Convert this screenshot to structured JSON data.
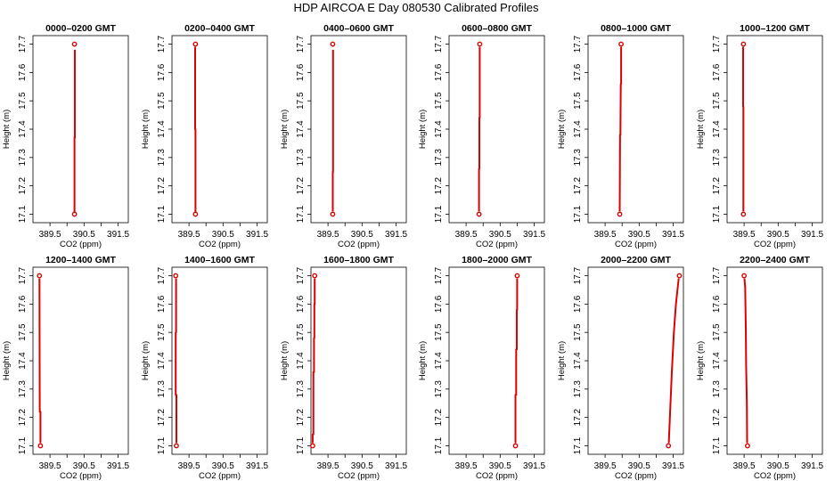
{
  "figure": {
    "title": "HDP  AIRCOA E  Day 080530  Calibrated Profiles",
    "series_color": "#dd0000"
  },
  "chart_data": [
    {
      "type": "line",
      "title": "0000–0200 GMT",
      "xlabel": "CO2 (ppm)",
      "ylabel": "Height (m)",
      "xlim": [
        389.0,
        391.8
      ],
      "ylim": [
        17.07,
        17.73
      ],
      "xticks": [
        "389.5",
        "390.5",
        "391.5"
      ],
      "yticks": [
        "17.1",
        "17.2",
        "17.3",
        "17.4",
        "17.5",
        "17.6",
        "17.7"
      ],
      "points": [
        {
          "x": 390.22,
          "y": 17.1
        },
        {
          "x": 390.22,
          "y": 17.7
        }
      ],
      "profile": [
        [
          390.22,
          17.1
        ],
        [
          390.22,
          17.37
        ],
        [
          390.23,
          17.37
        ],
        [
          390.23,
          17.68
        ]
      ]
    },
    {
      "type": "line",
      "title": "0200–0400 GMT",
      "xlabel": "CO2 (ppm)",
      "ylabel": "Height (m)",
      "xlim": [
        389.0,
        391.8
      ],
      "ylim": [
        17.07,
        17.73
      ],
      "xticks": [
        "389.5",
        "390.5",
        "391.5"
      ],
      "yticks": [
        "17.1",
        "17.2",
        "17.3",
        "17.4",
        "17.5",
        "17.6",
        "17.7"
      ],
      "points": [
        {
          "x": 389.69,
          "y": 17.1
        },
        {
          "x": 389.69,
          "y": 17.7
        }
      ],
      "profile": [
        [
          389.69,
          17.1
        ],
        [
          389.69,
          17.4
        ],
        [
          389.68,
          17.4
        ],
        [
          389.68,
          17.69
        ]
      ]
    },
    {
      "type": "line",
      "title": "0400–0600 GMT",
      "xlabel": "CO2 (ppm)",
      "ylabel": "Height (m)",
      "xlim": [
        389.0,
        391.8
      ],
      "ylim": [
        17.07,
        17.73
      ],
      "xticks": [
        "389.5",
        "390.5",
        "391.5"
      ],
      "yticks": [
        "17.1",
        "17.2",
        "17.3",
        "17.4",
        "17.5",
        "17.6",
        "17.7"
      ],
      "points": [
        {
          "x": 389.64,
          "y": 17.1
        },
        {
          "x": 389.64,
          "y": 17.7
        }
      ],
      "profile": [
        [
          389.64,
          17.11
        ],
        [
          389.64,
          17.25
        ],
        [
          389.65,
          17.25
        ],
        [
          389.65,
          17.68
        ]
      ]
    },
    {
      "type": "line",
      "title": "0600–0800 GMT",
      "xlabel": "CO2 (ppm)",
      "ylabel": "Height (m)",
      "xlim": [
        389.0,
        391.8
      ],
      "ylim": [
        17.07,
        17.73
      ],
      "xticks": [
        "389.5",
        "390.5",
        "391.5"
      ],
      "yticks": [
        "17.1",
        "17.2",
        "17.3",
        "17.4",
        "17.5",
        "17.6",
        "17.7"
      ],
      "points": [
        {
          "x": 389.88,
          "y": 17.1
        },
        {
          "x": 389.9,
          "y": 17.7
        }
      ],
      "profile": [
        [
          389.88,
          17.11
        ],
        [
          389.88,
          17.26
        ],
        [
          389.89,
          17.26
        ],
        [
          389.89,
          17.44
        ],
        [
          389.9,
          17.44
        ],
        [
          389.9,
          17.69
        ]
      ]
    },
    {
      "type": "line",
      "title": "0800–1000 GMT",
      "xlabel": "CO2 (ppm)",
      "ylabel": "Height (m)",
      "xlim": [
        389.0,
        391.8
      ],
      "ylim": [
        17.07,
        17.73
      ],
      "xticks": [
        "389.5",
        "390.5",
        "391.5"
      ],
      "yticks": [
        "17.1",
        "17.2",
        "17.3",
        "17.4",
        "17.5",
        "17.6",
        "17.7"
      ],
      "points": [
        {
          "x": 389.93,
          "y": 17.1
        },
        {
          "x": 389.97,
          "y": 17.7
        }
      ],
      "profile": [
        [
          389.93,
          17.11
        ],
        [
          389.94,
          17.38
        ],
        [
          389.95,
          17.38
        ],
        [
          389.96,
          17.56
        ],
        [
          389.97,
          17.56
        ],
        [
          389.97,
          17.69
        ]
      ]
    },
    {
      "type": "line",
      "title": "1000–1200 GMT",
      "xlabel": "CO2 (ppm)",
      "ylabel": "Height (m)",
      "xlim": [
        389.0,
        391.8
      ],
      "ylim": [
        17.07,
        17.73
      ],
      "xticks": [
        "389.5",
        "390.5",
        "391.5"
      ],
      "yticks": [
        "17.1",
        "17.2",
        "17.3",
        "17.4",
        "17.5",
        "17.6",
        "17.7"
      ],
      "points": [
        {
          "x": 389.48,
          "y": 17.1
        },
        {
          "x": 389.48,
          "y": 17.7
        }
      ],
      "profile": [
        [
          389.48,
          17.11
        ],
        [
          389.48,
          17.48
        ],
        [
          389.47,
          17.48
        ],
        [
          389.47,
          17.69
        ]
      ]
    },
    {
      "type": "line",
      "title": "1200–1400 GMT",
      "xlabel": "CO2 (ppm)",
      "ylabel": "Height (m)",
      "xlim": [
        389.0,
        391.8
      ],
      "ylim": [
        17.07,
        17.73
      ],
      "xticks": [
        "389.5",
        "390.5",
        "391.5"
      ],
      "yticks": [
        "17.1",
        "17.2",
        "17.3",
        "17.4",
        "17.5",
        "17.6",
        "17.7"
      ],
      "points": [
        {
          "x": 389.22,
          "y": 17.1
        },
        {
          "x": 389.19,
          "y": 17.7
        }
      ],
      "profile": [
        [
          389.22,
          17.11
        ],
        [
          389.22,
          17.22
        ],
        [
          389.2,
          17.22
        ],
        [
          389.19,
          17.69
        ]
      ]
    },
    {
      "type": "line",
      "title": "1400–1600 GMT",
      "xlabel": "CO2 (ppm)",
      "ylabel": "Height (m)",
      "xlim": [
        389.0,
        391.8
      ],
      "ylim": [
        17.07,
        17.73
      ],
      "xticks": [
        "389.5",
        "390.5",
        "391.5"
      ],
      "yticks": [
        "17.1",
        "17.2",
        "17.3",
        "17.4",
        "17.5",
        "17.6",
        "17.7"
      ],
      "points": [
        {
          "x": 389.13,
          "y": 17.1
        },
        {
          "x": 389.11,
          "y": 17.7
        }
      ],
      "profile": [
        [
          389.13,
          17.11
        ],
        [
          389.13,
          17.28
        ],
        [
          389.11,
          17.28
        ],
        [
          389.11,
          17.5
        ],
        [
          389.12,
          17.5
        ],
        [
          389.12,
          17.69
        ]
      ]
    },
    {
      "type": "line",
      "title": "1600–1800 GMT",
      "xlabel": "CO2 (ppm)",
      "ylabel": "Height (m)",
      "xlim": [
        389.0,
        391.8
      ],
      "ylim": [
        17.07,
        17.73
      ],
      "xticks": [
        "389.5",
        "390.5",
        "391.5"
      ],
      "yticks": [
        "17.1",
        "17.2",
        "17.3",
        "17.4",
        "17.5",
        "17.6",
        "17.7"
      ],
      "points": [
        {
          "x": 389.05,
          "y": 17.1
        },
        {
          "x": 389.11,
          "y": 17.7
        }
      ],
      "profile": [
        [
          389.05,
          17.11
        ],
        [
          389.05,
          17.14
        ],
        [
          389.07,
          17.14
        ],
        [
          389.07,
          17.36
        ],
        [
          389.09,
          17.36
        ],
        [
          389.09,
          17.48
        ],
        [
          389.1,
          17.48
        ],
        [
          389.1,
          17.6
        ],
        [
          389.11,
          17.6
        ],
        [
          389.11,
          17.69
        ]
      ]
    },
    {
      "type": "line",
      "title": "1800–2000 GMT",
      "xlabel": "CO2 (ppm)",
      "ylabel": "Height (m)",
      "xlim": [
        389.0,
        391.8
      ],
      "ylim": [
        17.07,
        17.73
      ],
      "xticks": [
        "389.5",
        "390.5",
        "391.5"
      ],
      "yticks": [
        "17.1",
        "17.2",
        "17.3",
        "17.4",
        "17.5",
        "17.6",
        "17.7"
      ],
      "points": [
        {
          "x": 390.95,
          "y": 17.1
        },
        {
          "x": 391.0,
          "y": 17.7
        }
      ],
      "profile": [
        [
          390.95,
          17.11
        ],
        [
          390.95,
          17.28
        ],
        [
          390.97,
          17.28
        ],
        [
          390.97,
          17.44
        ],
        [
          390.99,
          17.44
        ],
        [
          390.99,
          17.58
        ],
        [
          391.0,
          17.58
        ],
        [
          391.0,
          17.69
        ]
      ]
    },
    {
      "type": "line",
      "title": "2000–2200 GMT",
      "xlabel": "CO2 (ppm)",
      "ylabel": "Height (m)",
      "xlim": [
        389.0,
        391.8
      ],
      "ylim": [
        17.07,
        17.73
      ],
      "xticks": [
        "389.5",
        "390.5",
        "391.5"
      ],
      "yticks": [
        "17.1",
        "17.2",
        "17.3",
        "17.4",
        "17.5",
        "17.6",
        "17.7"
      ],
      "points": [
        {
          "x": 391.36,
          "y": 17.1
        },
        {
          "x": 391.68,
          "y": 17.7
        }
      ],
      "profile": [
        [
          391.37,
          17.11
        ],
        [
          391.42,
          17.25
        ],
        [
          391.46,
          17.36
        ],
        [
          391.52,
          17.5
        ],
        [
          391.58,
          17.6
        ],
        [
          391.66,
          17.69
        ]
      ]
    },
    {
      "type": "line",
      "title": "2200–2400 GMT",
      "xlabel": "CO2 (ppm)",
      "ylabel": "Height (m)",
      "xlim": [
        389.0,
        391.8
      ],
      "ylim": [
        17.07,
        17.73
      ],
      "xticks": [
        "389.5",
        "390.5",
        "391.5"
      ],
      "yticks": [
        "17.1",
        "17.2",
        "17.3",
        "17.4",
        "17.5",
        "17.6",
        "17.7"
      ],
      "points": [
        {
          "x": 389.6,
          "y": 17.1
        },
        {
          "x": 389.5,
          "y": 17.7
        }
      ],
      "profile": [
        [
          389.59,
          17.11
        ],
        [
          389.58,
          17.25
        ],
        [
          389.56,
          17.38
        ],
        [
          389.55,
          17.52
        ],
        [
          389.53,
          17.66
        ],
        [
          389.51,
          17.69
        ]
      ]
    }
  ]
}
